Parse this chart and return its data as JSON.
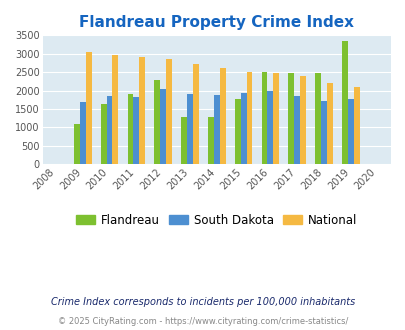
{
  "title": "Flandreau Property Crime Index",
  "title_color": "#1565c0",
  "years": [
    2009,
    2010,
    2011,
    2012,
    2013,
    2014,
    2015,
    2016,
    2017,
    2018,
    2019
  ],
  "flandreau": [
    1090,
    1630,
    1900,
    2300,
    1270,
    1270,
    1780,
    2500,
    2480,
    2480,
    3340
  ],
  "south_dakota": [
    1700,
    1840,
    1820,
    2050,
    1920,
    1870,
    1940,
    1990,
    1850,
    1720,
    1760
  ],
  "national": [
    3040,
    2960,
    2920,
    2870,
    2730,
    2600,
    2500,
    2480,
    2390,
    2210,
    2110
  ],
  "flandreau_color": "#7dc030",
  "south_dakota_color": "#4d8fd1",
  "national_color": "#f5b942",
  "bg_color": "#ddeaf2",
  "ylim": [
    0,
    3500
  ],
  "yticks": [
    0,
    500,
    1000,
    1500,
    2000,
    2500,
    3000,
    3500
  ],
  "xlim_left": 2008,
  "xlim_right": 2020,
  "xticks": [
    2008,
    2009,
    2010,
    2011,
    2012,
    2013,
    2014,
    2015,
    2016,
    2017,
    2018,
    2019,
    2020
  ],
  "legend_labels": [
    "Flandreau",
    "South Dakota",
    "National"
  ],
  "footnote1": "Crime Index corresponds to incidents per 100,000 inhabitants",
  "footnote2": "© 2025 CityRating.com - https://www.cityrating.com/crime-statistics/",
  "bar_width": 0.22,
  "fig_bg": "#ffffff"
}
